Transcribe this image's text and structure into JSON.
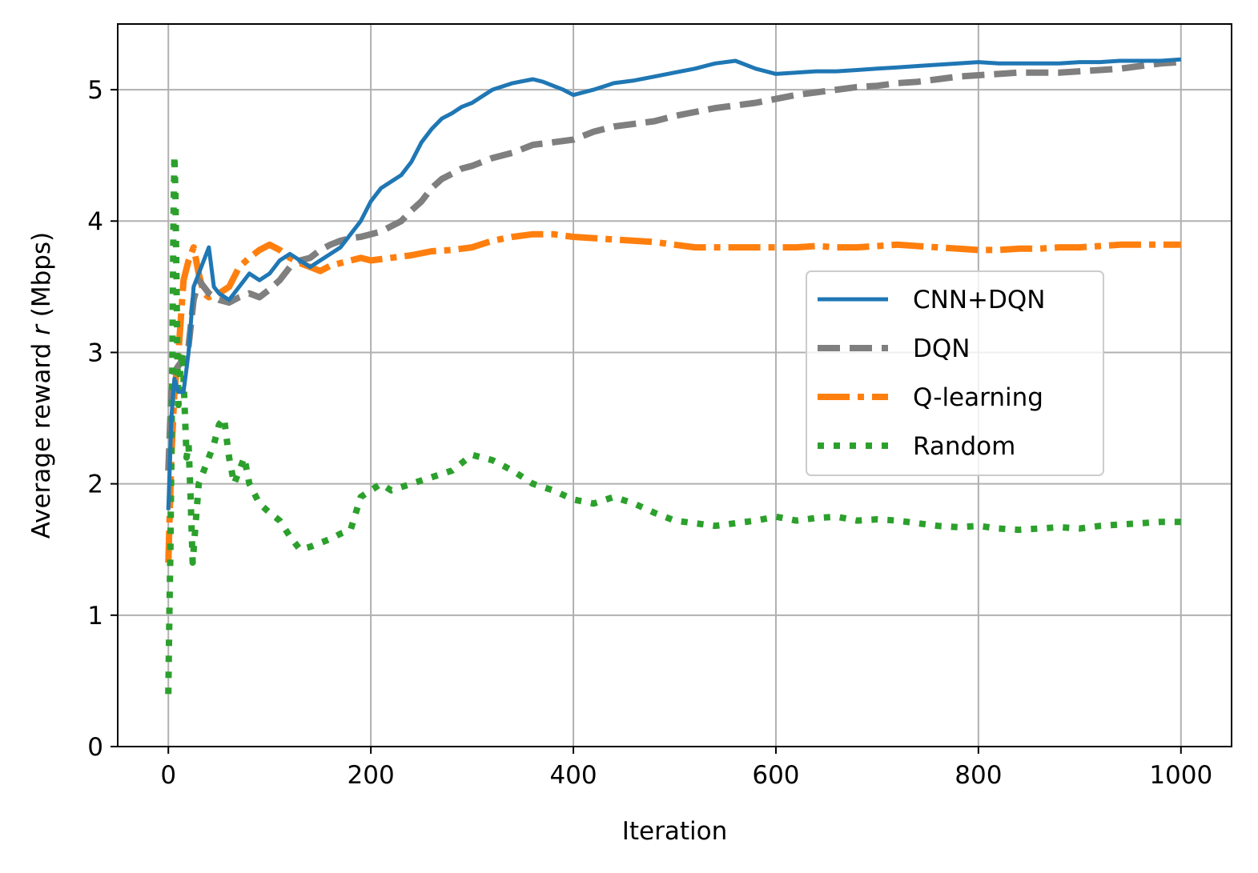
{
  "chart_data": {
    "type": "line",
    "xlabel": "Iteration",
    "ylabel_prefix": "Average reward ",
    "ylabel_var": "r",
    "ylabel_suffix": " (Mbps)",
    "xlim": [
      -50,
      1050
    ],
    "ylim": [
      0,
      5.5
    ],
    "xticks": [
      0,
      200,
      400,
      600,
      800,
      1000
    ],
    "yticks": [
      0,
      1,
      2,
      3,
      4,
      5
    ],
    "grid": true,
    "legend_position": "center-right",
    "series": [
      {
        "name": "CNN+DQN",
        "color": "#1f77b4",
        "style": "solid",
        "x": [
          0,
          3,
          6,
          10,
          15,
          20,
          25,
          30,
          35,
          40,
          45,
          50,
          60,
          70,
          80,
          90,
          100,
          110,
          120,
          130,
          140,
          150,
          160,
          170,
          180,
          190,
          200,
          210,
          220,
          230,
          240,
          250,
          260,
          270,
          280,
          290,
          300,
          320,
          340,
          360,
          370,
          380,
          390,
          400,
          420,
          440,
          460,
          480,
          500,
          520,
          540,
          560,
          580,
          600,
          620,
          640,
          660,
          680,
          700,
          720,
          740,
          760,
          780,
          800,
          820,
          840,
          860,
          880,
          900,
          920,
          940,
          960,
          980,
          1000
        ],
        "y": [
          1.8,
          2.5,
          2.8,
          2.7,
          2.7,
          3.0,
          3.5,
          3.6,
          3.7,
          3.8,
          3.5,
          3.45,
          3.4,
          3.5,
          3.6,
          3.55,
          3.6,
          3.7,
          3.75,
          3.7,
          3.65,
          3.7,
          3.75,
          3.8,
          3.9,
          4.0,
          4.15,
          4.25,
          4.3,
          4.35,
          4.45,
          4.6,
          4.7,
          4.78,
          4.82,
          4.87,
          4.9,
          5.0,
          5.05,
          5.08,
          5.06,
          5.03,
          5.0,
          4.96,
          5.0,
          5.05,
          5.07,
          5.1,
          5.13,
          5.16,
          5.2,
          5.22,
          5.16,
          5.12,
          5.13,
          5.14,
          5.14,
          5.15,
          5.16,
          5.17,
          5.18,
          5.19,
          5.2,
          5.21,
          5.2,
          5.2,
          5.2,
          5.2,
          5.21,
          5.21,
          5.22,
          5.22,
          5.22,
          5.23
        ]
      },
      {
        "name": "DQN",
        "color": "#7f7f7f",
        "style": "dashed",
        "x": [
          0,
          3,
          6,
          10,
          15,
          20,
          25,
          30,
          40,
          50,
          60,
          70,
          80,
          90,
          100,
          110,
          120,
          130,
          140,
          150,
          160,
          170,
          180,
          190,
          200,
          210,
          220,
          230,
          240,
          250,
          260,
          270,
          280,
          290,
          300,
          320,
          340,
          360,
          380,
          400,
          420,
          440,
          460,
          480,
          500,
          520,
          540,
          560,
          580,
          600,
          620,
          640,
          660,
          680,
          700,
          720,
          740,
          760,
          780,
          800,
          820,
          840,
          860,
          880,
          900,
          920,
          940,
          960,
          980,
          1000
        ],
        "y": [
          2.1,
          2.7,
          2.85,
          2.9,
          2.95,
          3.05,
          3.4,
          3.55,
          3.45,
          3.4,
          3.38,
          3.42,
          3.45,
          3.42,
          3.48,
          3.55,
          3.65,
          3.7,
          3.72,
          3.78,
          3.82,
          3.85,
          3.87,
          3.88,
          3.9,
          3.92,
          3.96,
          4.0,
          4.08,
          4.15,
          4.25,
          4.32,
          4.36,
          4.4,
          4.42,
          4.48,
          4.52,
          4.58,
          4.6,
          4.62,
          4.68,
          4.72,
          4.74,
          4.76,
          4.8,
          4.83,
          4.86,
          4.88,
          4.9,
          4.93,
          4.96,
          4.98,
          5.0,
          5.02,
          5.03,
          5.05,
          5.06,
          5.08,
          5.1,
          5.11,
          5.12,
          5.13,
          5.13,
          5.13,
          5.14,
          5.15,
          5.16,
          5.18,
          5.2,
          5.21
        ]
      },
      {
        "name": "Q-learning",
        "color": "#ff7f0e",
        "style": "dashdot",
        "x": [
          0,
          3,
          6,
          10,
          15,
          20,
          25,
          30,
          35,
          40,
          45,
          50,
          60,
          70,
          80,
          90,
          100,
          110,
          120,
          130,
          140,
          150,
          160,
          170,
          180,
          190,
          200,
          220,
          240,
          260,
          280,
          300,
          320,
          340,
          360,
          380,
          400,
          420,
          440,
          460,
          480,
          500,
          520,
          540,
          560,
          580,
          600,
          620,
          640,
          660,
          680,
          700,
          720,
          740,
          760,
          780,
          800,
          820,
          840,
          860,
          880,
          900,
          920,
          940,
          960,
          980,
          1000
        ],
        "y": [
          1.4,
          2.2,
          2.7,
          3.0,
          3.55,
          3.7,
          3.8,
          3.6,
          3.45,
          3.42,
          3.44,
          3.45,
          3.5,
          3.65,
          3.72,
          3.78,
          3.82,
          3.78,
          3.72,
          3.68,
          3.65,
          3.62,
          3.66,
          3.68,
          3.7,
          3.72,
          3.7,
          3.72,
          3.74,
          3.77,
          3.78,
          3.8,
          3.85,
          3.88,
          3.9,
          3.9,
          3.88,
          3.87,
          3.86,
          3.85,
          3.84,
          3.82,
          3.8,
          3.8,
          3.8,
          3.8,
          3.8,
          3.8,
          3.81,
          3.8,
          3.8,
          3.81,
          3.82,
          3.81,
          3.8,
          3.79,
          3.78,
          3.78,
          3.79,
          3.79,
          3.8,
          3.8,
          3.81,
          3.82,
          3.82,
          3.82,
          3.82
        ]
      },
      {
        "name": "Random",
        "color": "#2ca02c",
        "style": "dotted",
        "x": [
          0,
          1,
          2,
          3,
          4,
          5,
          6,
          7,
          8,
          9,
          10,
          12,
          14,
          16,
          18,
          20,
          22,
          24,
          26,
          28,
          30,
          35,
          40,
          45,
          50,
          55,
          60,
          65,
          70,
          75,
          80,
          90,
          100,
          110,
          120,
          130,
          140,
          150,
          160,
          170,
          180,
          190,
          200,
          210,
          220,
          240,
          260,
          280,
          300,
          320,
          340,
          360,
          380,
          400,
          420,
          440,
          460,
          480,
          500,
          520,
          540,
          560,
          580,
          600,
          620,
          640,
          660,
          680,
          700,
          720,
          740,
          760,
          780,
          800,
          820,
          840,
          860,
          880,
          900,
          920,
          940,
          960,
          980,
          1000
        ],
        "y": [
          0.4,
          1.0,
          1.5,
          2.2,
          3.0,
          4.0,
          4.5,
          4.2,
          3.6,
          2.9,
          2.6,
          2.9,
          3.0,
          2.6,
          2.2,
          2.3,
          1.9,
          1.4,
          1.6,
          1.8,
          2.0,
          2.1,
          2.2,
          2.3,
          2.45,
          2.5,
          2.2,
          2.0,
          2.1,
          2.2,
          2.0,
          1.85,
          1.78,
          1.72,
          1.6,
          1.5,
          1.52,
          1.55,
          1.58,
          1.62,
          1.65,
          1.9,
          1.95,
          2.0,
          1.95,
          2.0,
          2.05,
          2.1,
          2.22,
          2.18,
          2.1,
          2.0,
          1.95,
          1.88,
          1.85,
          1.9,
          1.85,
          1.78,
          1.72,
          1.7,
          1.68,
          1.7,
          1.72,
          1.75,
          1.72,
          1.74,
          1.75,
          1.72,
          1.73,
          1.72,
          1.7,
          1.68,
          1.67,
          1.68,
          1.66,
          1.65,
          1.66,
          1.67,
          1.66,
          1.68,
          1.69,
          1.7,
          1.71,
          1.71
        ]
      }
    ]
  }
}
